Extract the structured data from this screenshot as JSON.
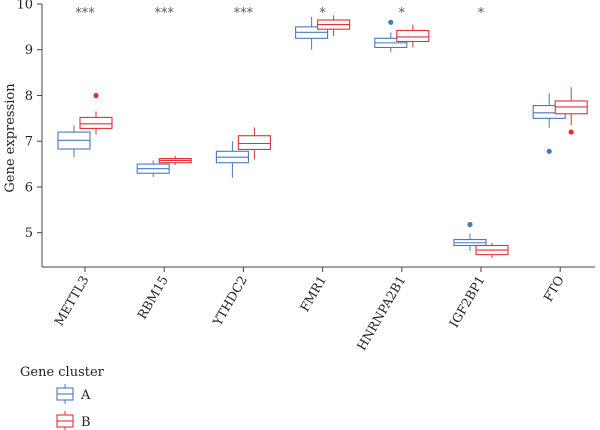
{
  "chart_data": {
    "type": "boxplot",
    "ylabel": "Gene expression",
    "xlabel": "",
    "ylim": [
      4.25,
      10
    ],
    "yticks": [
      5,
      6,
      7,
      8,
      9,
      10
    ],
    "categories": [
      "METTL3",
      "RBM15",
      "YTHDC2",
      "FMR1",
      "HNRNPA2B1",
      "IGF2BP1",
      "FTO"
    ],
    "significance": [
      "***",
      "***",
      "***",
      "*",
      "*",
      "*",
      ""
    ],
    "legend": {
      "title": "Gene cluster",
      "placement": "bottom-left"
    },
    "series": [
      {
        "name": "A",
        "color": "#4a78bd",
        "boxes": [
          {
            "whisker_low": 6.65,
            "q1": 6.83,
            "median": 7.02,
            "q3": 7.2,
            "whisker_high": 7.35,
            "outliers": []
          },
          {
            "whisker_low": 6.22,
            "q1": 6.3,
            "median": 6.4,
            "q3": 6.5,
            "whisker_high": 6.58,
            "outliers": []
          },
          {
            "whisker_low": 6.2,
            "q1": 6.53,
            "median": 6.65,
            "q3": 6.78,
            "whisker_high": 7.0,
            "outliers": []
          },
          {
            "whisker_low": 9.0,
            "q1": 9.25,
            "median": 9.38,
            "q3": 9.5,
            "whisker_high": 9.72,
            "outliers": []
          },
          {
            "whisker_low": 8.95,
            "q1": 9.05,
            "median": 9.15,
            "q3": 9.25,
            "whisker_high": 9.38,
            "outliers": [
              9.6
            ]
          },
          {
            "whisker_low": 4.6,
            "q1": 4.72,
            "median": 4.78,
            "q3": 4.85,
            "whisker_high": 4.98,
            "outliers": [
              5.18
            ]
          },
          {
            "whisker_low": 7.3,
            "q1": 7.5,
            "median": 7.62,
            "q3": 7.78,
            "whisker_high": 8.05,
            "outliers": [
              6.78
            ]
          }
        ]
      },
      {
        "name": "B",
        "color": "#e0303a",
        "boxes": [
          {
            "whisker_low": 7.15,
            "q1": 7.28,
            "median": 7.38,
            "q3": 7.52,
            "whisker_high": 7.65,
            "outliers": [
              8.0
            ]
          },
          {
            "whisker_low": 6.48,
            "q1": 6.53,
            "median": 6.58,
            "q3": 6.62,
            "whisker_high": 6.68,
            "outliers": []
          },
          {
            "whisker_low": 6.6,
            "q1": 6.82,
            "median": 6.95,
            "q3": 7.12,
            "whisker_high": 7.3,
            "outliers": []
          },
          {
            "whisker_low": 9.3,
            "q1": 9.45,
            "median": 9.55,
            "q3": 9.65,
            "whisker_high": 9.75,
            "outliers": []
          },
          {
            "whisker_low": 9.05,
            "q1": 9.18,
            "median": 9.28,
            "q3": 9.42,
            "whisker_high": 9.55,
            "outliers": []
          },
          {
            "whisker_low": 4.45,
            "q1": 4.52,
            "median": 4.62,
            "q3": 4.72,
            "whisker_high": 4.78,
            "outliers": []
          },
          {
            "whisker_low": 7.35,
            "q1": 7.6,
            "median": 7.75,
            "q3": 7.88,
            "whisker_high": 8.18,
            "outliers": [
              7.2
            ]
          }
        ]
      }
    ]
  }
}
